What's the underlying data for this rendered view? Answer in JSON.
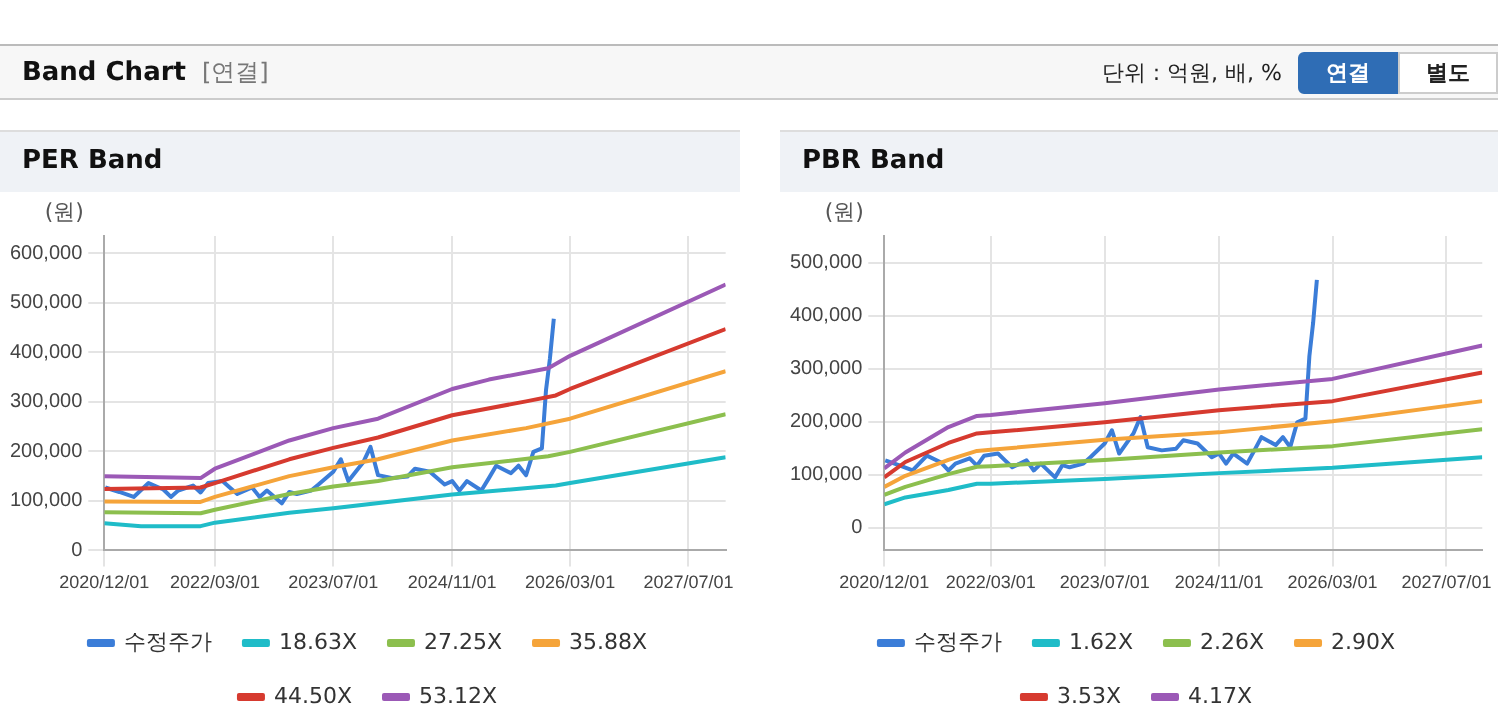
{
  "chart_data": [
    {
      "type": "other",
      "title": "Band Chart",
      "annotations": [
        "[연결]",
        "단위 : 억원, 배, %",
        "연결",
        "별도"
      ]
    },
    {
      "type": "line",
      "title": "PER Band",
      "ylabel": "(원)",
      "legend": "bottom",
      "grid": true,
      "marker": "none",
      "line_style": "solid",
      "xlim": [
        "2020-12-01",
        "2027-12-01"
      ],
      "xticks": [
        {
          "value": "2020-12-01",
          "label": "2020/12/01"
        },
        {
          "value": "2022-03-01",
          "label": "2022/03/01"
        },
        {
          "value": "2023-07-01",
          "label": "2023/07/01"
        },
        {
          "value": "2024-11-01",
          "label": "2024/11/01"
        },
        {
          "value": "2026-03-01",
          "label": "2026/03/01"
        },
        {
          "value": "2027-07-01",
          "label": "2027/07/01"
        }
      ],
      "ylim": [
        0,
        635000
      ],
      "yticks": [
        0,
        {
          "value": 100000,
          "label": "100,000"
        },
        {
          "value": 200000,
          "label": "200,000"
        },
        {
          "value": 300000,
          "label": "300,000"
        },
        {
          "value": 400000,
          "label": "400,000"
        },
        {
          "value": 500000,
          "label": "500,000"
        },
        {
          "value": 600000,
          "label": "600,000"
        }
      ],
      "series": [
        {
          "name": "수정주가",
          "color": "#3b7dd8",
          "x": [
            "2020-12-05",
            "2021-02",
            "2021-04",
            "2021-06",
            "2021-08",
            "2021-09",
            "2021-10",
            "2021-12",
            "2022-01",
            "2022-02",
            "2022-04",
            "2022-05",
            "2022-06",
            "2022-08",
            "2022-09",
            "2022-10",
            "2022-12",
            "2023-01",
            "2023-02",
            "2023-04",
            "2023-05",
            "2023-07",
            "2023-08",
            "2023-09",
            "2023-11",
            "2023-12",
            "2024-01",
            "2024-03",
            "2024-05",
            "2024-06",
            "2024-08",
            "2024-10",
            "2024-11",
            "2024-12",
            "2025-01",
            "2025-03",
            "2025-04",
            "2025-05",
            "2025-07",
            "2025-08",
            "2025-09",
            "2025-10",
            "2025-11-05",
            "2025-11-22",
            "2025-12-08",
            "2025-12-24"
          ],
          "values": [
            127000,
            118000,
            108000,
            136000,
            123000,
            108000,
            121000,
            131000,
            117000,
            136000,
            140000,
            127000,
            114000,
            127000,
            108000,
            121000,
            95000,
            118000,
            114000,
            121000,
            133000,
            159000,
            184000,
            140000,
            178000,
            209000,
            152000,
            146000,
            149000,
            165000,
            159000,
            133000,
            140000,
            121000,
            140000,
            121000,
            146000,
            171000,
            156000,
            171000,
            152000,
            199000,
            206000,
            324000,
            387000,
            468000
          ]
        },
        {
          "name": "18.63X",
          "color": "#1fbcc8",
          "x": [
            "2020-12-01",
            "2021-05",
            "2022-01",
            "2022-03",
            "2023-01",
            "2023-07",
            "2024-11",
            "2026-01",
            "2026-03",
            "2027-12-01"
          ],
          "values": [
            55000,
            49000,
            49000,
            56000,
            76000,
            85000,
            113000,
            131000,
            136000,
            188000
          ]
        },
        {
          "name": "27.25X",
          "color": "#8cbf4e",
          "x": [
            "2020-12-01",
            "2022-01",
            "2022-03",
            "2023-01",
            "2023-07",
            "2024-01",
            "2024-11",
            "2025-12",
            "2026-03",
            "2027-12-01"
          ],
          "values": [
            77000,
            75000,
            82000,
            114000,
            129000,
            140000,
            168000,
            190000,
            199000,
            275000
          ]
        },
        {
          "name": "35.88X",
          "color": "#f5a43a",
          "x": [
            "2020-12-01",
            "2022-01",
            "2022-03",
            "2023-01",
            "2023-07",
            "2024-01",
            "2024-11",
            "2025-09",
            "2026-03",
            "2027-12-01"
          ],
          "values": [
            99000,
            98000,
            108000,
            150000,
            168000,
            184000,
            222000,
            247000,
            266000,
            362000
          ]
        },
        {
          "name": "44.50X",
          "color": "#d63a2f",
          "x": [
            "2020-12-01",
            "2022-01",
            "2022-03",
            "2023-01",
            "2023-07",
            "2024-01",
            "2024-11",
            "2025-09",
            "2026-01",
            "2026-03",
            "2027-12-01"
          ],
          "values": [
            124000,
            127000,
            136000,
            184000,
            207000,
            228000,
            273000,
            301000,
            313000,
            326000,
            447000
          ]
        },
        {
          "name": "53.12X",
          "color": "#9b59b6",
          "x": [
            "2020-12-01",
            "2022-01",
            "2022-03",
            "2023-01",
            "2023-07",
            "2024-01",
            "2024-11",
            "2025-04",
            "2025-12",
            "2026-03",
            "2027-12-01"
          ],
          "values": [
            150000,
            146000,
            165000,
            222000,
            247000,
            266000,
            326000,
            345000,
            368000,
            393000,
            537000
          ]
        }
      ]
    },
    {
      "type": "line",
      "title": "PBR Band",
      "ylabel": "(원)",
      "legend": "bottom",
      "grid": true,
      "marker": "none",
      "line_style": "solid",
      "xlim": [
        "2020-12-01",
        "2027-12-01"
      ],
      "xticks": [
        {
          "value": "2020-12-01",
          "label": "2020/12/01"
        },
        {
          "value": "2022-03-01",
          "label": "2022/03/01"
        },
        {
          "value": "2023-07-01",
          "label": "2023/07/01"
        },
        {
          "value": "2024-11-01",
          "label": "2024/11/01"
        },
        {
          "value": "2026-03-01",
          "label": "2026/03/01"
        },
        {
          "value": "2027-07-01",
          "label": "2027/07/01"
        }
      ],
      "ylim": [
        -43000,
        551000
      ],
      "yticks": [
        0,
        {
          "value": 100000,
          "label": "100,000"
        },
        {
          "value": 200000,
          "label": "200,000"
        },
        {
          "value": 300000,
          "label": "300,000"
        },
        {
          "value": 400000,
          "label": "400,000"
        },
        {
          "value": 500000,
          "label": "500,000"
        }
      ],
      "series": [
        {
          "name": "수정주가",
          "color": "#3b7dd8",
          "x": [
            "2020-12-05",
            "2021-02",
            "2021-04",
            "2021-06",
            "2021-08",
            "2021-09",
            "2021-10",
            "2021-12",
            "2022-01",
            "2022-02",
            "2022-04",
            "2022-05",
            "2022-06",
            "2022-08",
            "2022-09",
            "2022-10",
            "2022-12",
            "2023-01",
            "2023-02",
            "2023-04",
            "2023-05",
            "2023-07",
            "2023-08",
            "2023-09",
            "2023-11",
            "2023-12",
            "2024-01",
            "2024-03",
            "2024-05",
            "2024-06",
            "2024-08",
            "2024-10",
            "2024-11",
            "2024-12",
            "2025-01",
            "2025-03",
            "2025-04",
            "2025-05",
            "2025-07",
            "2025-08",
            "2025-09",
            "2025-10",
            "2025-11-05",
            "2025-11-22",
            "2025-12-08",
            "2025-12-24"
          ],
          "values": [
            127000,
            118000,
            108000,
            136000,
            123000,
            108000,
            121000,
            131000,
            117000,
            136000,
            140000,
            127000,
            114000,
            127000,
            108000,
            121000,
            95000,
            118000,
            114000,
            121000,
            133000,
            159000,
            184000,
            140000,
            178000,
            209000,
            152000,
            146000,
            149000,
            165000,
            159000,
            133000,
            140000,
            121000,
            140000,
            121000,
            146000,
            171000,
            156000,
            171000,
            152000,
            199000,
            206000,
            324000,
            387000,
            468000
          ]
        },
        {
          "name": "1.62X",
          "color": "#1fbcc8",
          "x": [
            "2020-12-01",
            "2021-03",
            "2021-09",
            "2022-01",
            "2022-03",
            "2023-07",
            "2024-11",
            "2026-03",
            "2027-12-01"
          ],
          "values": [
            44000,
            57000,
            71000,
            83000,
            83000,
            92000,
            103000,
            113000,
            133000
          ]
        },
        {
          "name": "2.26X",
          "color": "#8cbf4e",
          "x": [
            "2020-12-01",
            "2021-03",
            "2021-09",
            "2022-01",
            "2022-03",
            "2023-07",
            "2024-11",
            "2026-03",
            "2027-12-01"
          ],
          "values": [
            62000,
            77000,
            101000,
            115000,
            116000,
            128000,
            142000,
            154000,
            186000
          ]
        },
        {
          "name": "2.90X",
          "color": "#f5a43a",
          "x": [
            "2020-12-01",
            "2021-03",
            "2021-09",
            "2022-01",
            "2022-03",
            "2023-07",
            "2024-11",
            "2026-03",
            "2027-12-01"
          ],
          "values": [
            77000,
            98000,
            128000,
            145000,
            147000,
            166000,
            180000,
            201000,
            239000
          ]
        },
        {
          "name": "3.53X",
          "color": "#d63a2f",
          "x": [
            "2020-12-01",
            "2021-03",
            "2021-09",
            "2022-01",
            "2022-03",
            "2023-07",
            "2024-11",
            "2026-03",
            "2027-12-01"
          ],
          "values": [
            95000,
            124000,
            160000,
            178000,
            180000,
            199000,
            222000,
            239000,
            293000
          ]
        },
        {
          "name": "4.17X",
          "color": "#9b59b6",
          "x": [
            "2020-12-01",
            "2021-03",
            "2021-09",
            "2022-01",
            "2022-03",
            "2023-07",
            "2024-11",
            "2026-03",
            "2027-12-01"
          ],
          "values": [
            112000,
            142000,
            190000,
            211000,
            213000,
            235000,
            261000,
            281000,
            344000
          ]
        }
      ]
    }
  ]
}
